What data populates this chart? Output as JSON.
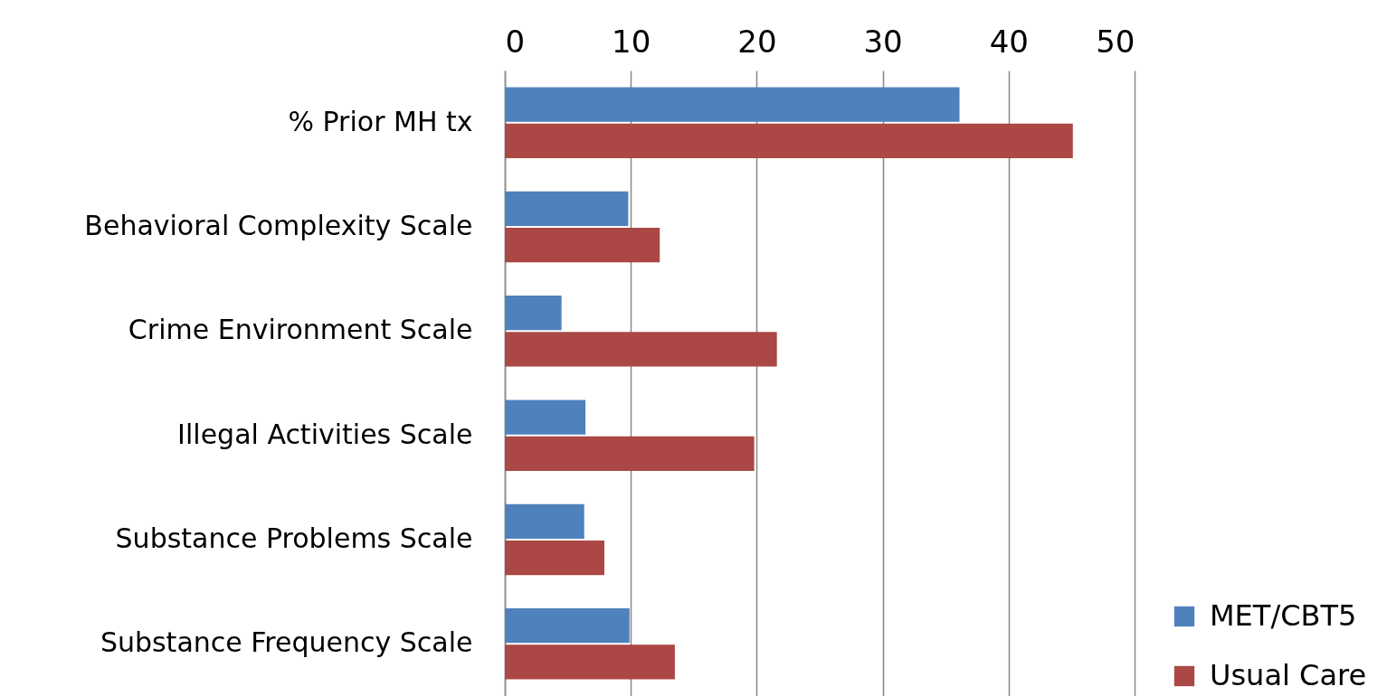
{
  "chart_data": {
    "type": "bar",
    "orientation": "horizontal",
    "categories": [
      "% Prior MH tx",
      "Behavioral Complexity Scale",
      "Crime Environment Scale",
      "Illegal Activities Scale",
      "Substance Problems Scale",
      "Substance Frequency Scale"
    ],
    "series": [
      {
        "name": "MET/CBT5",
        "color": "#4f81bd",
        "values": [
          36.1,
          9.8,
          4.5,
          6.4,
          6.3,
          9.9
        ]
      },
      {
        "name": "Usual Care",
        "color": "#ab4744",
        "values": [
          45.1,
          12.3,
          21.6,
          19.8,
          7.9,
          13.5
        ]
      }
    ],
    "xlim": [
      0,
      50
    ],
    "xticks": [
      0,
      10,
      20,
      30,
      40,
      50
    ],
    "grid": "x",
    "legend": "bottom right"
  }
}
